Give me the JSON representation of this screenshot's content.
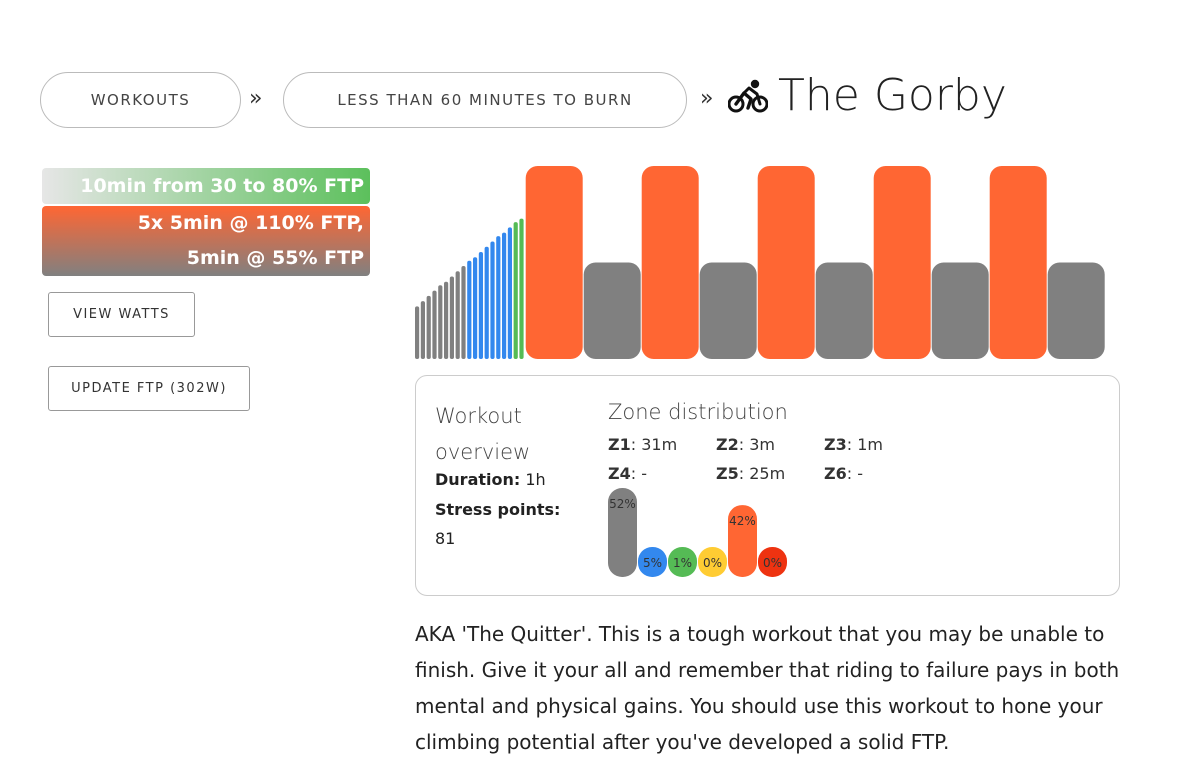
{
  "breadcrumb": {
    "workouts_label": "WORKOUTS",
    "category_label": "LESS THAN 60 MINUTES TO BURN",
    "separator": "»"
  },
  "workout": {
    "title": "The Gorby",
    "icon": "bicycle-rider-icon",
    "description_blocks": [
      {
        "lines": [
          "10min from 30 to 80% FTP"
        ]
      },
      {
        "lines": [
          "5x 5min @ 110% FTP,",
          "5min @ 55% FTP"
        ]
      }
    ]
  },
  "buttons": {
    "view_watts": "VIEW WATTS",
    "update_ftp": "UPDATE FTP (302W)"
  },
  "overview": {
    "title": "Workout overview",
    "duration_label": "Duration:",
    "duration_value": "1h",
    "stress_label": "Stress points:",
    "stress_value": "81"
  },
  "zones": {
    "title": "Zone distribution",
    "items": [
      {
        "label": "Z1",
        "value": "31m"
      },
      {
        "label": "Z2",
        "value": "3m"
      },
      {
        "label": "Z3",
        "value": "1m"
      },
      {
        "label": "Z4",
        "value": "-"
      },
      {
        "label": "Z5",
        "value": "25m"
      },
      {
        "label": "Z6",
        "value": "-"
      }
    ],
    "percentages": [
      {
        "pct": 52,
        "label": "52%",
        "color": "#808080"
      },
      {
        "pct": 5,
        "label": "5%",
        "color": "#3388ee"
      },
      {
        "pct": 1,
        "label": "1%",
        "color": "#55bb55"
      },
      {
        "pct": 0,
        "label": "0%",
        "color": "#ffcc33"
      },
      {
        "pct": 42,
        "label": "42%",
        "color": "#ff6633"
      },
      {
        "pct": 0,
        "label": "0%",
        "color": "#ee3311"
      }
    ]
  },
  "chart_data": {
    "type": "bar",
    "series": [
      {
        "values": [
          30,
          33,
          36,
          39,
          42,
          44,
          47,
          50,
          53,
          56,
          58,
          61,
          64,
          67,
          70,
          72,
          75,
          78,
          80,
          110,
          55,
          110,
          55,
          110,
          55,
          110,
          55,
          110,
          55
        ]
      }
    ],
    "durations": [
      0.5,
      0.5,
      0.5,
      0.5,
      0.5,
      0.5,
      0.5,
      0.5,
      0.5,
      0.5,
      0.5,
      0.5,
      0.5,
      0.5,
      0.5,
      0.5,
      0.5,
      0.5,
      0.5,
      5,
      5,
      5,
      5,
      5,
      5,
      5,
      5,
      5,
      5
    ],
    "colors": {
      "z1": "#808080",
      "z2": "#3388ee",
      "z3": "#55bb55",
      "z5": "#ff6633"
    }
  },
  "description_text": "AKA 'The Quitter'. This is a tough workout that you may be unable to finish. Give it your all and remember that riding to failure pays in both mental and physical gains. You should use this workout to hone your climbing potential after you've developed a solid FTP."
}
